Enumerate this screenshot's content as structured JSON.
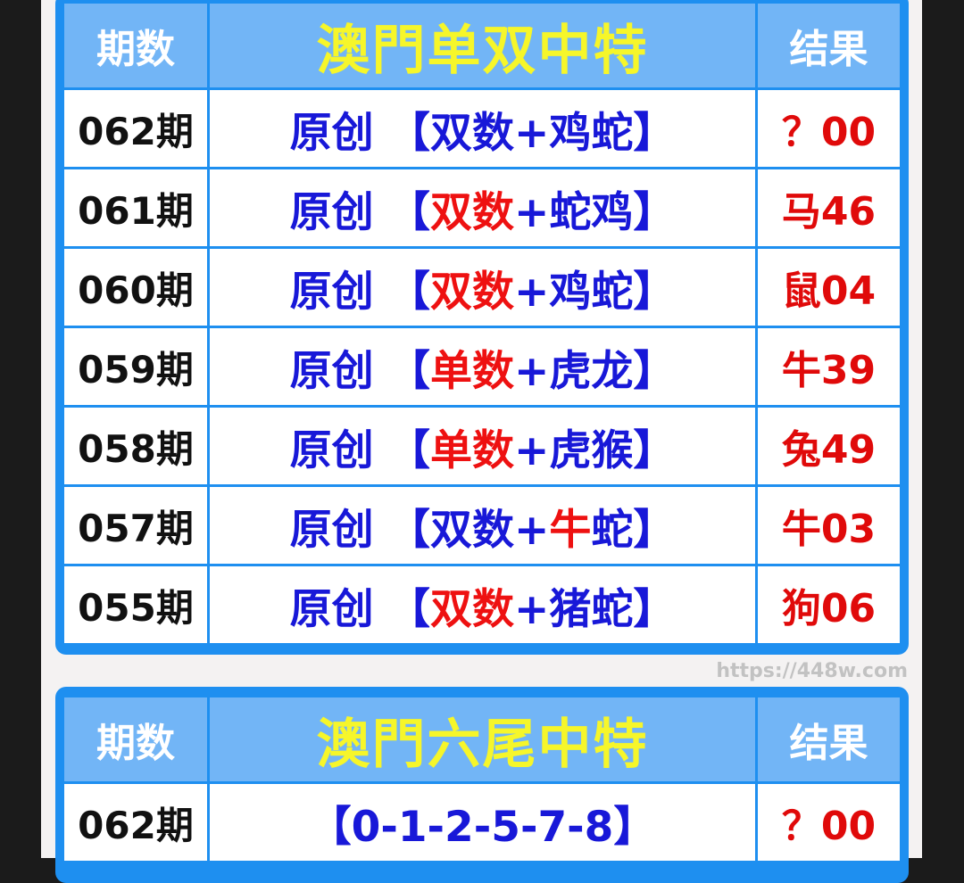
{
  "table1": {
    "header": {
      "period": "期数",
      "title": "澳門单双中特",
      "result": "结果"
    },
    "rows": [
      {
        "period": "062期",
        "segments": [
          {
            "text": "原创 【双数+鸡蛇】",
            "color": "blue"
          }
        ],
        "result": "？00"
      },
      {
        "period": "061期",
        "segments": [
          {
            "text": "原创 【",
            "color": "blue"
          },
          {
            "text": "双数",
            "color": "red"
          },
          {
            "text": "+蛇鸡】",
            "color": "blue"
          }
        ],
        "result": "马46"
      },
      {
        "period": "060期",
        "segments": [
          {
            "text": "原创 【",
            "color": "blue"
          },
          {
            "text": "双数",
            "color": "red"
          },
          {
            "text": "+鸡蛇】",
            "color": "blue"
          }
        ],
        "result": "鼠04"
      },
      {
        "period": "059期",
        "segments": [
          {
            "text": "原创 【",
            "color": "blue"
          },
          {
            "text": "单数",
            "color": "red"
          },
          {
            "text": "+虎龙】",
            "color": "blue"
          }
        ],
        "result": "牛39"
      },
      {
        "period": "058期",
        "segments": [
          {
            "text": "原创 【",
            "color": "blue"
          },
          {
            "text": "单数",
            "color": "red"
          },
          {
            "text": "+虎猴】",
            "color": "blue"
          }
        ],
        "result": "兔49"
      },
      {
        "period": "057期",
        "segments": [
          {
            "text": "原创 【双数+",
            "color": "blue"
          },
          {
            "text": "牛",
            "color": "red"
          },
          {
            "text": "蛇】",
            "color": "blue"
          }
        ],
        "result": "牛03"
      },
      {
        "period": "055期",
        "segments": [
          {
            "text": "原创 【",
            "color": "blue"
          },
          {
            "text": "双数",
            "color": "red"
          },
          {
            "text": "+猪蛇】",
            "color": "blue"
          }
        ],
        "result": "狗06"
      }
    ]
  },
  "table2": {
    "header": {
      "period": "期数",
      "title": "澳門六尾中特",
      "result": "结果"
    },
    "rows": [
      {
        "period": "062期",
        "segments": [
          {
            "text": "【0-1-2-5-7-8】",
            "color": "blue"
          }
        ],
        "result": "？00"
      }
    ]
  },
  "watermark": "https://448w.com",
  "colors": {
    "frame": "#1e8ff0",
    "header_bg": "#72b5f6",
    "title": "#f6f62a",
    "blue": "#1818d8",
    "red": "#ee1111"
  }
}
